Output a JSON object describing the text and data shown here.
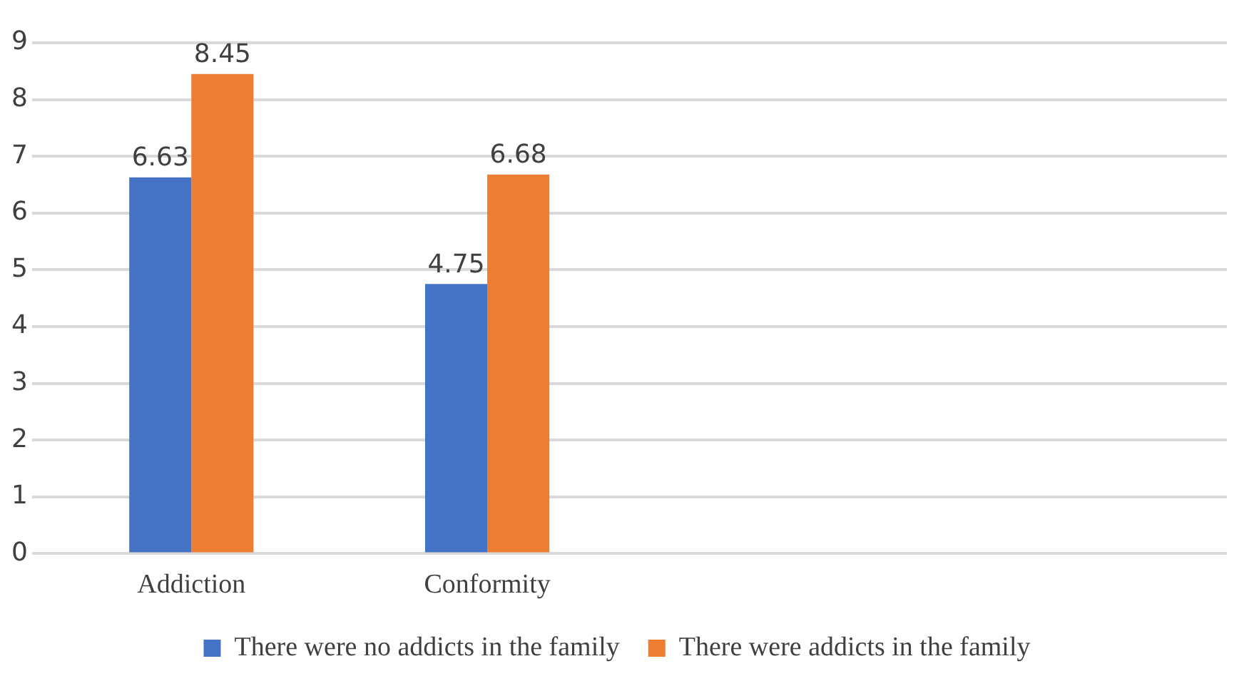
{
  "chart_data": {
    "type": "bar",
    "categories": [
      "Addiction",
      "Conformity",
      null,
      null
    ],
    "series": [
      {
        "name": "There were no addicts in the family",
        "color": "#4472c4",
        "values": [
          6.63,
          4.75,
          null,
          null
        ]
      },
      {
        "name": "There were addicts in the family",
        "color": "#ed7d31",
        "values": [
          8.45,
          6.68,
          null,
          null
        ]
      }
    ],
    "ylim": [
      0,
      9
    ],
    "yticks": [
      0,
      1,
      2,
      3,
      4,
      5,
      6,
      7,
      8,
      9
    ],
    "grid": "y",
    "legend": "bottom",
    "data_labels": true
  }
}
